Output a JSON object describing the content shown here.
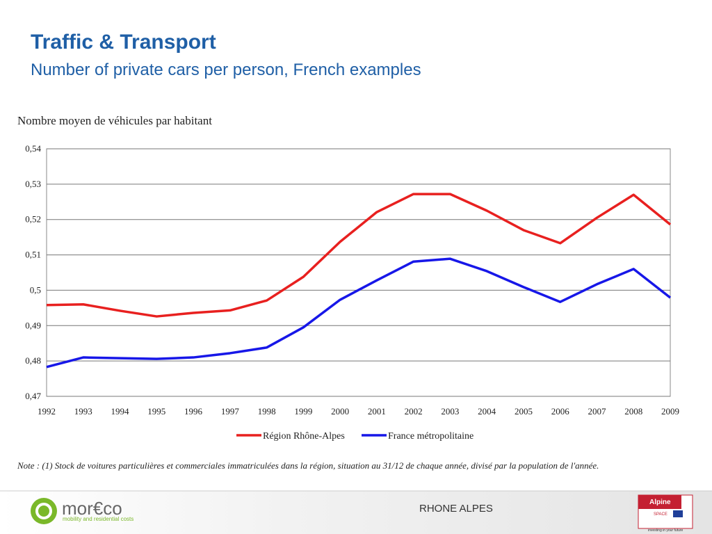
{
  "slide": {
    "title": "Traffic & Transport",
    "subtitle": "Number of private cars per person, French examples",
    "note": "Note :  (1) Stock de voitures particulières et commerciales immatriculées dans la région, situation au 31/12 de chaque année, divisé par la population de l'année.",
    "footer": "RHONE ALPES",
    "logo_name": "mor€co",
    "logo_tagline": "mobility and residential costs",
    "badge_title": "Alpine",
    "badge_sub": "SPACE",
    "badge_motto": "investing in your future"
  },
  "chart_data": {
    "type": "line",
    "title": "Nombre moyen de véhicules par habitant",
    "categories": [
      "1992",
      "1993",
      "1994",
      "1995",
      "1996",
      "1997",
      "1998",
      "1999",
      "2000",
      "2001",
      "2002",
      "2003",
      "2004",
      "2005",
      "2006",
      "2007",
      "2008",
      "2009"
    ],
    "series": [
      {
        "name": "Région Rhône-Alpes",
        "color": "#e8201f",
        "values": [
          0.4958,
          0.496,
          0.4942,
          0.4926,
          0.4936,
          0.4943,
          0.4971,
          0.5038,
          0.5137,
          0.5221,
          0.5272,
          0.5272,
          0.5225,
          0.517,
          0.5133,
          0.5205,
          0.527,
          0.5186
        ]
      },
      {
        "name": "France métropolitaine",
        "color": "#1717e8",
        "values": [
          0.4783,
          0.481,
          0.4808,
          0.4806,
          0.481,
          0.4822,
          0.4838,
          0.4895,
          0.4973,
          0.5028,
          0.5081,
          0.5089,
          0.5054,
          0.5009,
          0.4967,
          0.5017,
          0.506,
          0.4979
        ]
      }
    ],
    "ylim": [
      0.47,
      0.54
    ],
    "yticks": [
      {
        "value": 0.47,
        "label": "0,47"
      },
      {
        "value": 0.48,
        "label": "0,48"
      },
      {
        "value": 0.49,
        "label": "0,49"
      },
      {
        "value": 0.5,
        "label": "0,5"
      },
      {
        "value": 0.51,
        "label": "0,51"
      },
      {
        "value": 0.52,
        "label": "0,52"
      },
      {
        "value": 0.53,
        "label": "0,53"
      },
      {
        "value": 0.54,
        "label": "0,54"
      }
    ],
    "grid": true,
    "legend": "bottom"
  }
}
